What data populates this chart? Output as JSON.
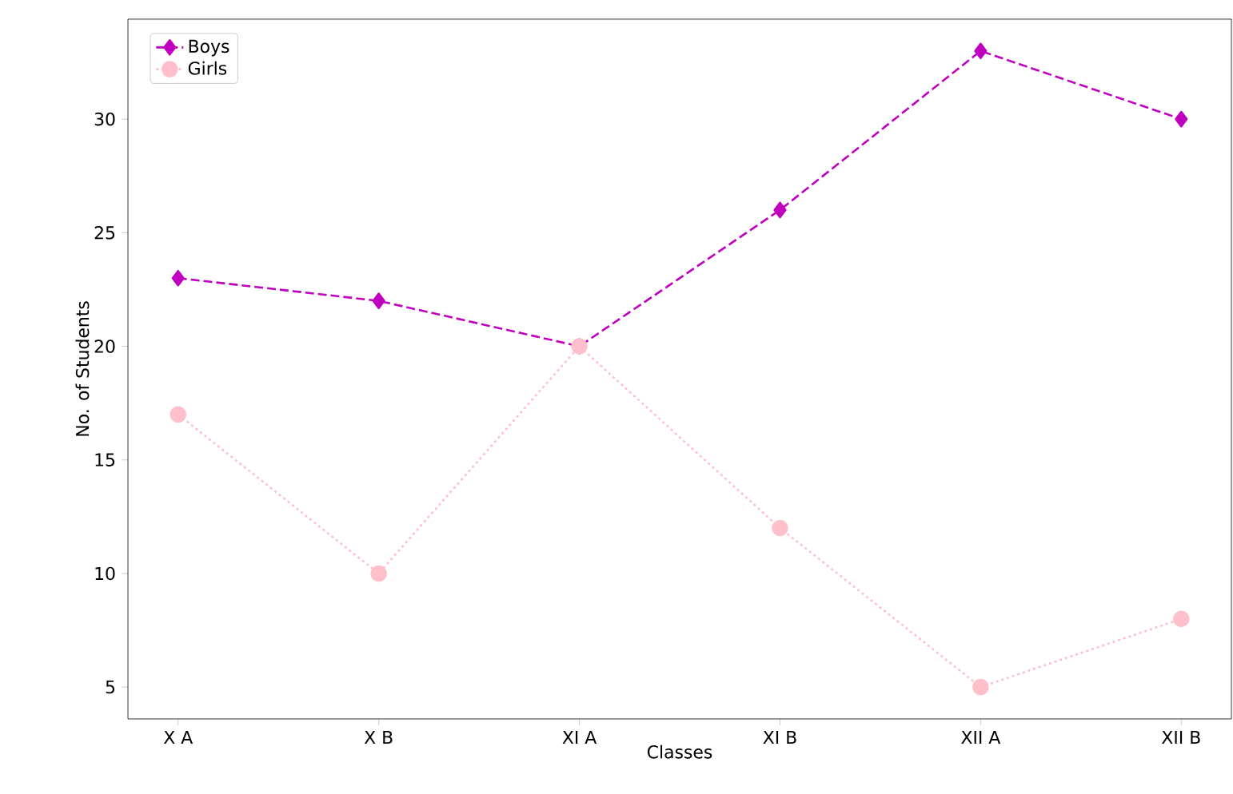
{
  "chart_data": {
    "type": "line",
    "xlabel": "Classes",
    "ylabel": "No. of Students",
    "categories": [
      "X A",
      "X B",
      "XI A",
      "XI B",
      "XII A",
      "XII B"
    ],
    "series": [
      {
        "name": "Boys",
        "color": "#bf00bf",
        "values": [
          23,
          22,
          20,
          26,
          33,
          30
        ],
        "marker": "diamond",
        "line_style": "dashed"
      },
      {
        "name": "Girls",
        "color": "#ffc0cb",
        "values": [
          17,
          10,
          20,
          12,
          5,
          8
        ],
        "marker": "circle",
        "line_style": "dotted"
      }
    ],
    "ylim": [
      3.6,
      34.4
    ],
    "yticks": [
      5,
      10,
      15,
      20,
      25,
      30
    ],
    "legend": "top left",
    "grid": false
  }
}
